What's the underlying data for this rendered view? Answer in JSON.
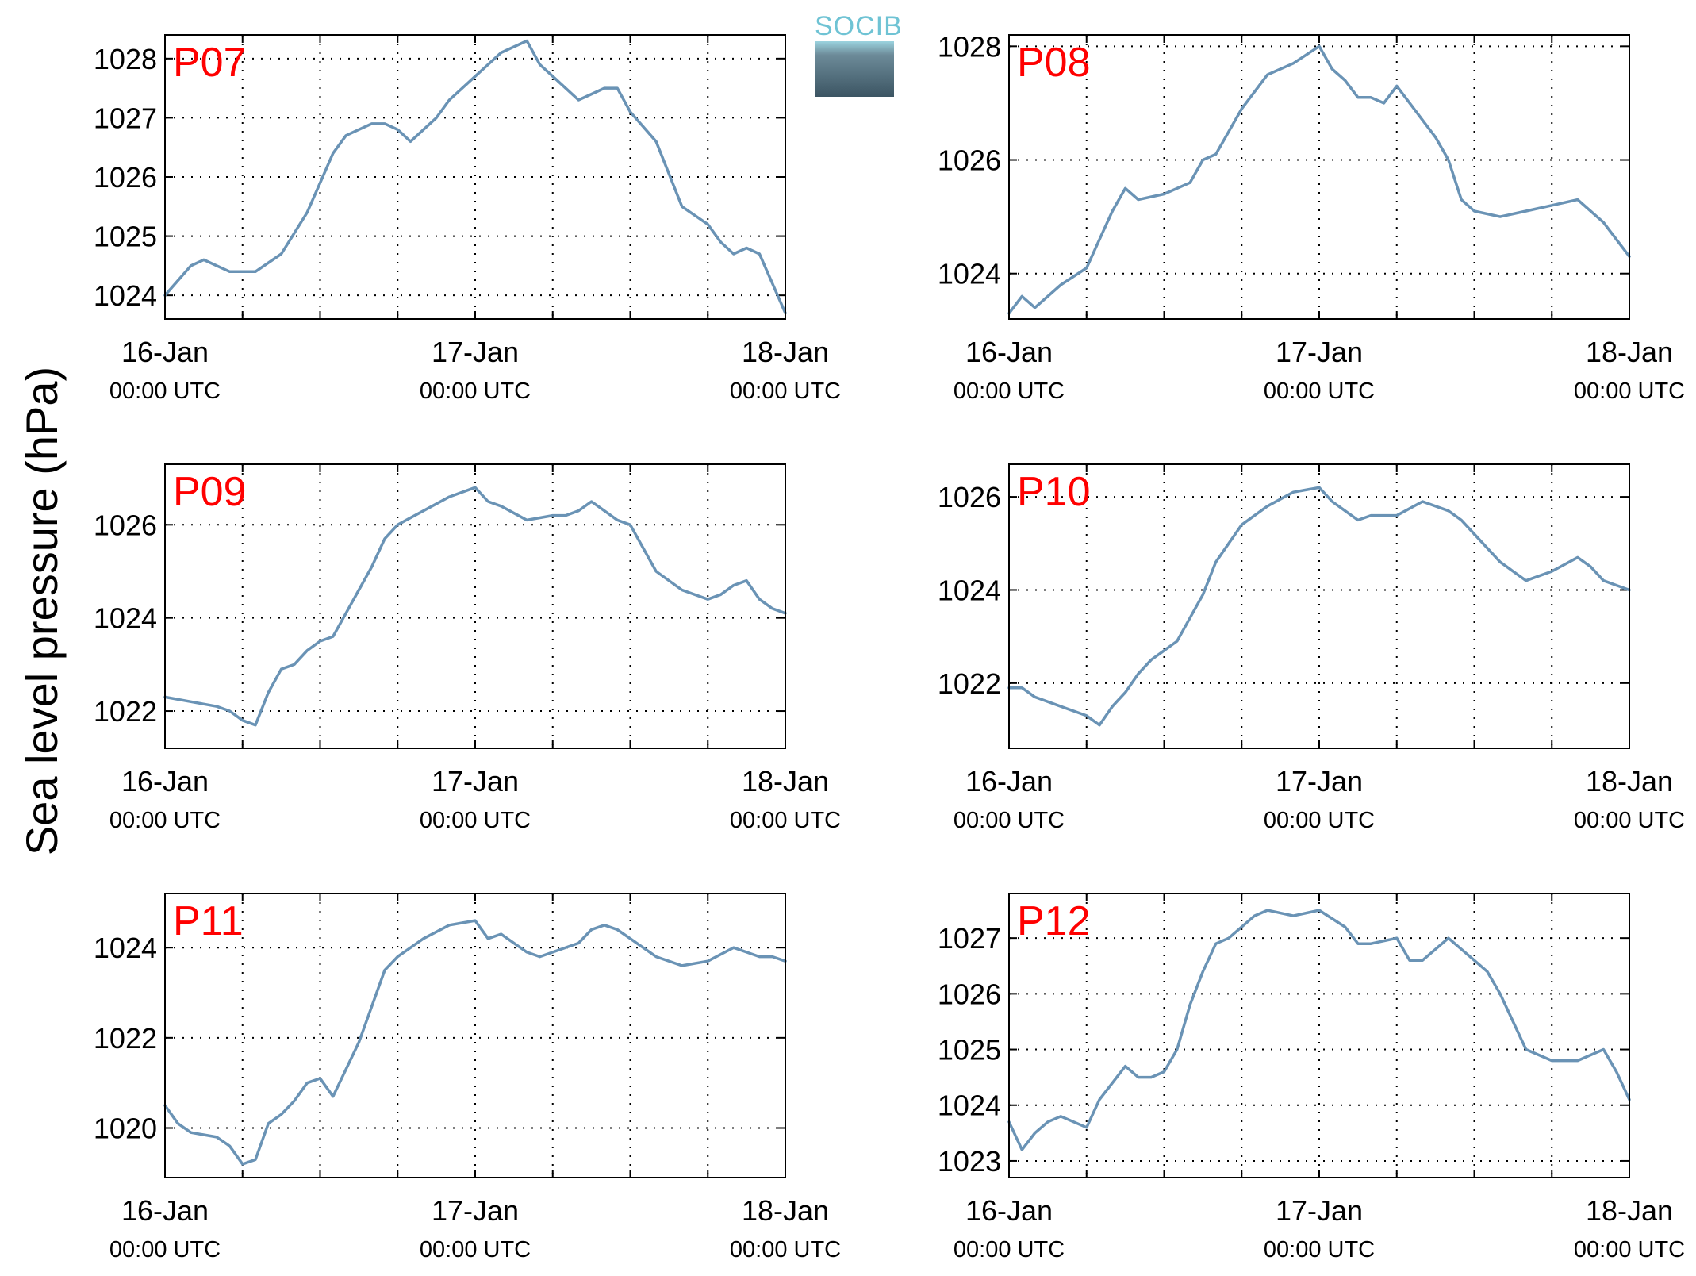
{
  "figure": {
    "ylabel": "Sea level pressure (hPa)",
    "logo_text": "SOCIB",
    "colors": {
      "line": "#6a93b5",
      "panel_label": "#ff0000",
      "axis": "#000000"
    }
  },
  "chart_data": [
    {
      "type": "line",
      "title": "P07",
      "ylim": [
        1023.6,
        1028.4
      ],
      "yticks": [
        1024,
        1025,
        1026,
        1027,
        1028
      ],
      "xticklabels": [
        [
          "16-Jan",
          "00:00 UTC"
        ],
        [
          "17-Jan",
          "00:00 UTC"
        ],
        [
          "18-Jan",
          "00:00 UTC"
        ]
      ],
      "grid": true,
      "series": [
        {
          "x_hours": [
            0,
            2,
            3,
            5,
            7,
            9,
            11,
            12,
            13,
            14,
            15,
            16,
            17,
            18,
            19,
            21,
            22,
            24,
            26,
            28,
            29,
            30,
            31,
            32,
            33,
            34,
            35,
            36,
            38,
            40,
            42,
            43,
            44,
            45,
            46,
            47,
            48
          ],
          "y": [
            1024.0,
            1024.5,
            1024.6,
            1024.4,
            1024.4,
            1024.7,
            1025.4,
            1025.9,
            1026.4,
            1026.7,
            1026.8,
            1026.9,
            1026.9,
            1026.8,
            1026.6,
            1027.0,
            1027.3,
            1027.7,
            1028.1,
            1028.3,
            1027.9,
            1027.7,
            1027.5,
            1027.3,
            1027.4,
            1027.5,
            1027.5,
            1027.1,
            1026.6,
            1025.5,
            1025.2,
            1024.9,
            1024.7,
            1024.8,
            1024.7,
            1024.2,
            1023.7
          ]
        }
      ]
    },
    {
      "type": "line",
      "title": "P08",
      "ylim": [
        1023.2,
        1028.2
      ],
      "yticks": [
        1024,
        1026,
        1028
      ],
      "xticklabels": [
        [
          "16-Jan",
          "00:00 UTC"
        ],
        [
          "17-Jan",
          "00:00 UTC"
        ],
        [
          "18-Jan",
          "00:00 UTC"
        ]
      ],
      "grid": true,
      "series": [
        {
          "x_hours": [
            0,
            1,
            2,
            4,
            6,
            7,
            8,
            9,
            10,
            12,
            14,
            15,
            16,
            18,
            20,
            22,
            24,
            25,
            26,
            27,
            28,
            29,
            30,
            32,
            33,
            34,
            35,
            36,
            38,
            40,
            42,
            44,
            46,
            47,
            48
          ],
          "y": [
            1023.3,
            1023.6,
            1023.4,
            1023.8,
            1024.1,
            1024.6,
            1025.1,
            1025.5,
            1025.3,
            1025.4,
            1025.6,
            1026.0,
            1026.1,
            1026.9,
            1027.5,
            1027.7,
            1028.0,
            1027.6,
            1027.4,
            1027.1,
            1027.1,
            1027.0,
            1027.3,
            1026.7,
            1026.4,
            1026.0,
            1025.3,
            1025.1,
            1025.0,
            1025.1,
            1025.2,
            1025.3,
            1024.9,
            1024.6,
            1024.3
          ]
        }
      ]
    },
    {
      "type": "line",
      "title": "P09",
      "ylim": [
        1021.2,
        1027.3
      ],
      "yticks": [
        1022,
        1024,
        1026
      ],
      "xticklabels": [
        [
          "16-Jan",
          "00:00 UTC"
        ],
        [
          "17-Jan",
          "00:00 UTC"
        ],
        [
          "18-Jan",
          "00:00 UTC"
        ]
      ],
      "grid": true,
      "series": [
        {
          "x_hours": [
            0,
            2,
            4,
            5,
            6,
            7,
            8,
            9,
            10,
            11,
            12,
            13,
            14,
            15,
            16,
            17,
            18,
            20,
            22,
            24,
            25,
            26,
            28,
            30,
            31,
            32,
            33,
            34,
            35,
            36,
            38,
            40,
            42,
            43,
            44,
            45,
            46,
            47,
            48
          ],
          "y": [
            1022.3,
            1022.2,
            1022.1,
            1022.0,
            1021.8,
            1021.7,
            1022.4,
            1022.9,
            1023.0,
            1023.3,
            1023.5,
            1023.6,
            1024.1,
            1024.6,
            1025.1,
            1025.7,
            1026.0,
            1026.3,
            1026.6,
            1026.8,
            1026.5,
            1026.4,
            1026.1,
            1026.2,
            1026.2,
            1026.3,
            1026.5,
            1026.3,
            1026.1,
            1026.0,
            1025.0,
            1024.6,
            1024.4,
            1024.5,
            1024.7,
            1024.8,
            1024.4,
            1024.2,
            1024.1
          ]
        }
      ]
    },
    {
      "type": "line",
      "title": "P10",
      "ylim": [
        1020.6,
        1026.7
      ],
      "yticks": [
        1022,
        1024,
        1026
      ],
      "xticklabels": [
        [
          "16-Jan",
          "00:00 UTC"
        ],
        [
          "17-Jan",
          "00:00 UTC"
        ],
        [
          "18-Jan",
          "00:00 UTC"
        ]
      ],
      "grid": true,
      "series": [
        {
          "x_hours": [
            0,
            1,
            2,
            4,
            6,
            7,
            8,
            9,
            10,
            11,
            12,
            13,
            14,
            15,
            16,
            18,
            20,
            22,
            24,
            25,
            26,
            27,
            28,
            30,
            32,
            34,
            35,
            36,
            38,
            40,
            42,
            44,
            45,
            46,
            47,
            48
          ],
          "y": [
            1021.9,
            1021.9,
            1021.7,
            1021.5,
            1021.3,
            1021.1,
            1021.5,
            1021.8,
            1022.2,
            1022.5,
            1022.7,
            1022.9,
            1023.4,
            1023.9,
            1024.6,
            1025.4,
            1025.8,
            1026.1,
            1026.2,
            1025.9,
            1025.7,
            1025.5,
            1025.6,
            1025.6,
            1025.9,
            1025.7,
            1025.5,
            1025.2,
            1024.6,
            1024.2,
            1024.4,
            1024.7,
            1024.5,
            1024.2,
            1024.1,
            1024.0
          ]
        }
      ]
    },
    {
      "type": "line",
      "title": "P11",
      "ylim": [
        1018.9,
        1025.2
      ],
      "yticks": [
        1020,
        1022,
        1024
      ],
      "xticklabels": [
        [
          "16-Jan",
          "00:00 UTC"
        ],
        [
          "17-Jan",
          "00:00 UTC"
        ],
        [
          "18-Jan",
          "00:00 UTC"
        ]
      ],
      "grid": true,
      "series": [
        {
          "x_hours": [
            0,
            1,
            2,
            4,
            5,
            6,
            7,
            8,
            9,
            10,
            11,
            12,
            13,
            14,
            15,
            16,
            17,
            18,
            20,
            22,
            24,
            25,
            26,
            28,
            29,
            30,
            32,
            33,
            34,
            35,
            36,
            38,
            40,
            42,
            44,
            45,
            46,
            47,
            48
          ],
          "y": [
            1020.5,
            1020.1,
            1019.9,
            1019.8,
            1019.6,
            1019.2,
            1019.3,
            1020.1,
            1020.3,
            1020.6,
            1021.0,
            1021.1,
            1020.7,
            1021.3,
            1021.9,
            1022.7,
            1023.5,
            1023.8,
            1024.2,
            1024.5,
            1024.6,
            1024.2,
            1024.3,
            1023.9,
            1023.8,
            1023.9,
            1024.1,
            1024.4,
            1024.5,
            1024.4,
            1024.2,
            1023.8,
            1023.6,
            1023.7,
            1024.0,
            1023.9,
            1023.8,
            1023.8,
            1023.7
          ]
        }
      ]
    },
    {
      "type": "line",
      "title": "P12",
      "ylim": [
        1022.7,
        1027.8
      ],
      "yticks": [
        1023,
        1024,
        1025,
        1026,
        1027
      ],
      "xticklabels": [
        [
          "16-Jan",
          "00:00 UTC"
        ],
        [
          "17-Jan",
          "00:00 UTC"
        ],
        [
          "18-Jan",
          "00:00 UTC"
        ]
      ],
      "grid": true,
      "series": [
        {
          "x_hours": [
            0,
            1,
            2,
            3,
            4,
            5,
            6,
            7,
            8,
            9,
            10,
            11,
            12,
            13,
            14,
            15,
            16,
            17,
            18,
            19,
            20,
            22,
            24,
            26,
            27,
            28,
            30,
            31,
            32,
            33,
            34,
            35,
            36,
            37,
            38,
            40,
            42,
            44,
            46,
            47,
            48
          ],
          "y": [
            1023.7,
            1023.2,
            1023.5,
            1023.7,
            1023.8,
            1023.7,
            1023.6,
            1024.1,
            1024.4,
            1024.7,
            1024.5,
            1024.5,
            1024.6,
            1025.0,
            1025.8,
            1026.4,
            1026.9,
            1027.0,
            1027.2,
            1027.4,
            1027.5,
            1027.4,
            1027.5,
            1027.2,
            1026.9,
            1026.9,
            1027.0,
            1026.6,
            1026.6,
            1026.8,
            1027.0,
            1026.8,
            1026.6,
            1026.4,
            1026.0,
            1025.0,
            1024.8,
            1024.8,
            1025.0,
            1024.6,
            1024.1
          ]
        }
      ]
    }
  ]
}
